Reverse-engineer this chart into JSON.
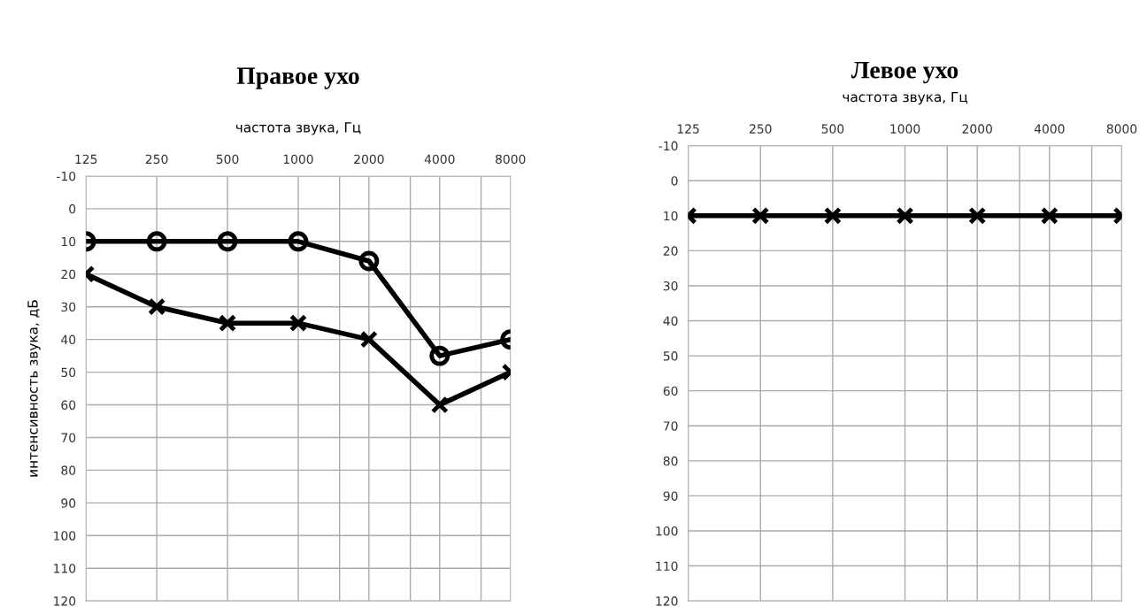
{
  "chart_data": [
    {
      "type": "line",
      "title": "Правое ухо",
      "xlabel": "частота звука, Гц",
      "ylabel": "интенсивность звука, дБ",
      "x": [
        125,
        250,
        500,
        1000,
        2000,
        4000,
        8000
      ],
      "series": [
        {
          "color": "#000000",
          "marker": "circle",
          "values": [
            10,
            10,
            10,
            10,
            16,
            45,
            40
          ]
        },
        {
          "color": "#000000",
          "marker": "cross",
          "values": [
            20,
            30,
            35,
            35,
            40,
            60,
            50
          ]
        }
      ],
      "log": "x",
      "xlim": [
        125,
        8000
      ],
      "xticks": [
        125,
        250,
        500,
        1000,
        {
          "value": 1500,
          "label": null
        },
        2000,
        {
          "value": 3000,
          "label": null
        },
        4000,
        {
          "value": 6000,
          "label": null
        },
        8000
      ],
      "ylim": [
        120,
        -10
      ],
      "yticks": [
        {
          "value": -10,
          "label": "-10"
        },
        0,
        10,
        20,
        30,
        40,
        50,
        60,
        70,
        80,
        90,
        100,
        110,
        120
      ],
      "grid": true,
      "legend": false,
      "line_style": "solid"
    },
    {
      "type": "line",
      "title": "Левое ухо",
      "xlabel": "частота звука, Гц",
      "x": [
        125,
        250,
        500,
        1000,
        2000,
        4000,
        8000
      ],
      "series": [
        {
          "color": "#000000",
          "marker": "cross",
          "values": [
            10,
            10,
            10,
            10,
            10,
            10,
            10
          ]
        }
      ],
      "log": "x",
      "xlim": [
        125,
        8000
      ],
      "xticks": [
        125,
        250,
        500,
        1000,
        {
          "value": 1500,
          "label": null
        },
        2000,
        {
          "value": 3000,
          "label": null
        },
        4000,
        {
          "value": 6000,
          "label": null
        },
        8000
      ],
      "ylim": [
        120,
        -10
      ],
      "yticks": [
        {
          "value": -10,
          "label": "-10"
        },
        0,
        10,
        20,
        30,
        40,
        50,
        60,
        70,
        80,
        90,
        100,
        110,
        120
      ],
      "grid": true,
      "legend": false,
      "line_style": "solid"
    }
  ]
}
